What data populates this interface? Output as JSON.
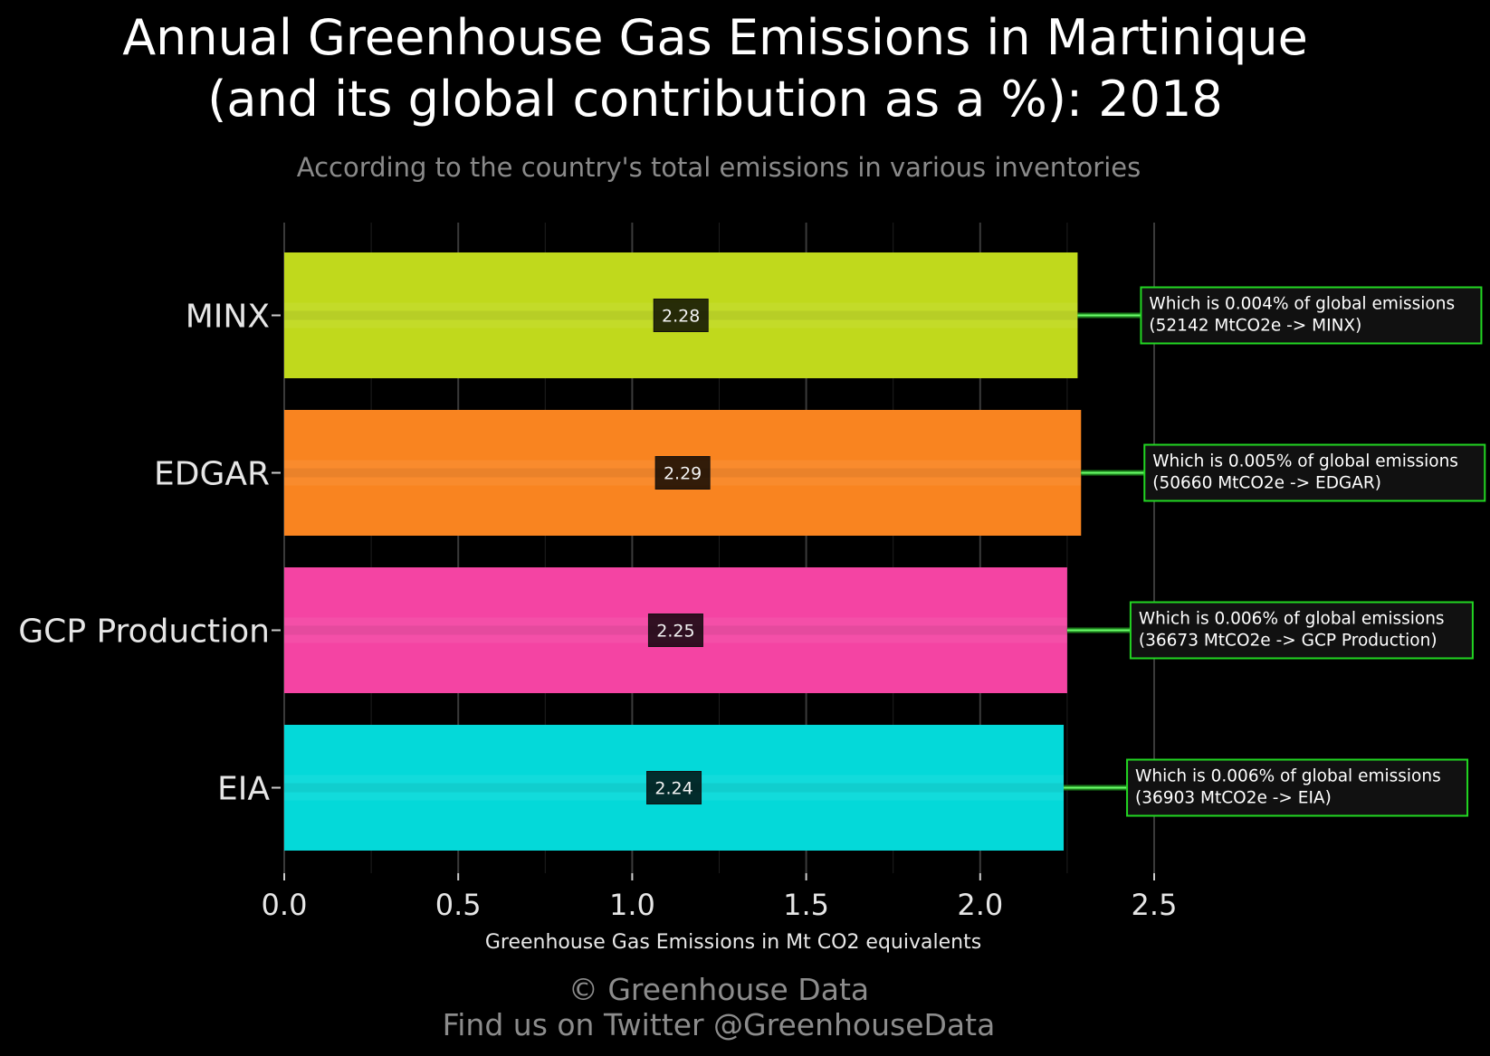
{
  "title_line1": "Annual Greenhouse Gas Emissions in Martinique",
  "title_line2": "(and its global contribution as a %): 2018",
  "subtitle": "According to the country's total emissions in various inventories",
  "footer": {
    "copyright": "© Greenhouse Data",
    "twitter": "Find us on Twitter @GreenhouseData"
  },
  "chart_data": {
    "type": "bar",
    "orientation": "horizontal",
    "categories": [
      "MINX",
      "EDGAR",
      "GCP Production",
      "EIA"
    ],
    "values": [
      2.28,
      2.29,
      2.25,
      2.24
    ],
    "value_labels": [
      "2.28",
      "2.29",
      "2.25",
      "2.24"
    ],
    "bar_colors": [
      "#c0d91c",
      "#f98420",
      "#f444a3",
      "#04d9d9"
    ],
    "annotations": [
      {
        "line1": "Which is 0.004% of global emissions",
        "line2": "(52142 MtCO2e -> MINX)"
      },
      {
        "line1": "Which is 0.005% of global emissions",
        "line2": "(50660 MtCO2e -> EDGAR)"
      },
      {
        "line1": "Which is 0.006% of global emissions",
        "line2": "(36673 MtCO2e -> GCP Production)"
      },
      {
        "line1": "Which is 0.006% of global emissions",
        "line2": "(36903 MtCO2e -> EIA)"
      }
    ],
    "annotation_border_color": "#22d622",
    "xlabel": "Greenhouse Gas Emissions in Mt CO2 equivalents",
    "ylabel": "",
    "xticks": [
      "0.0",
      "0.5",
      "1.0",
      "1.5",
      "2.0",
      "2.5"
    ],
    "xlim": [
      0,
      2.5
    ],
    "grid": true,
    "legend": "none"
  }
}
